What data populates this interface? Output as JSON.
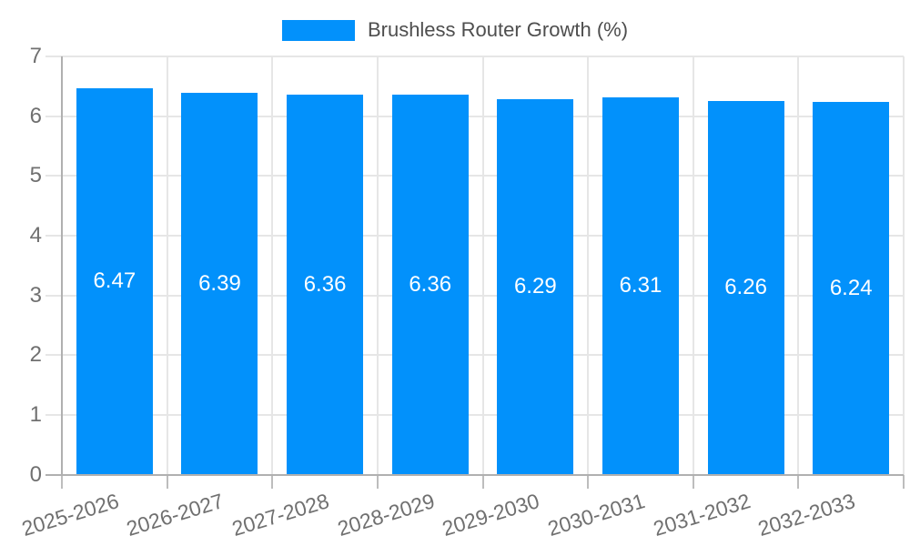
{
  "legend": {
    "label": "Brushless Router Growth (%)"
  },
  "chart_data": {
    "type": "bar",
    "title": "",
    "categories": [
      "2025-2026",
      "2026-2027",
      "2027-2028",
      "2028-2029",
      "2029-2030",
      "2030-2031",
      "2031-2032",
      "2032-2033"
    ],
    "series": [
      {
        "name": "Brushless Router Growth (%)",
        "values": [
          6.47,
          6.39,
          6.36,
          6.36,
          6.29,
          6.31,
          6.26,
          6.24
        ]
      }
    ],
    "bar_value_labels": [
      "6.47",
      "6.39",
      "6.36",
      "6.36",
      "6.29",
      "6.31",
      "6.26",
      "6.24"
    ],
    "xlabel": "",
    "ylabel": "",
    "ylim": [
      0,
      7
    ],
    "yticks": [
      0,
      1,
      2,
      3,
      4,
      5,
      6,
      7
    ],
    "grid": "horizontal-and-vertical",
    "legend_position": "top-center",
    "colors": {
      "bar": "#0291FB",
      "value_label": "#ffffff",
      "legend_text": "#4e4e4e",
      "axis_label": "#707070",
      "gridline": "#e6e6e6",
      "axis_line": "#b0b0b0",
      "tick": "#bdbdbd",
      "background": "#ffffff"
    }
  }
}
